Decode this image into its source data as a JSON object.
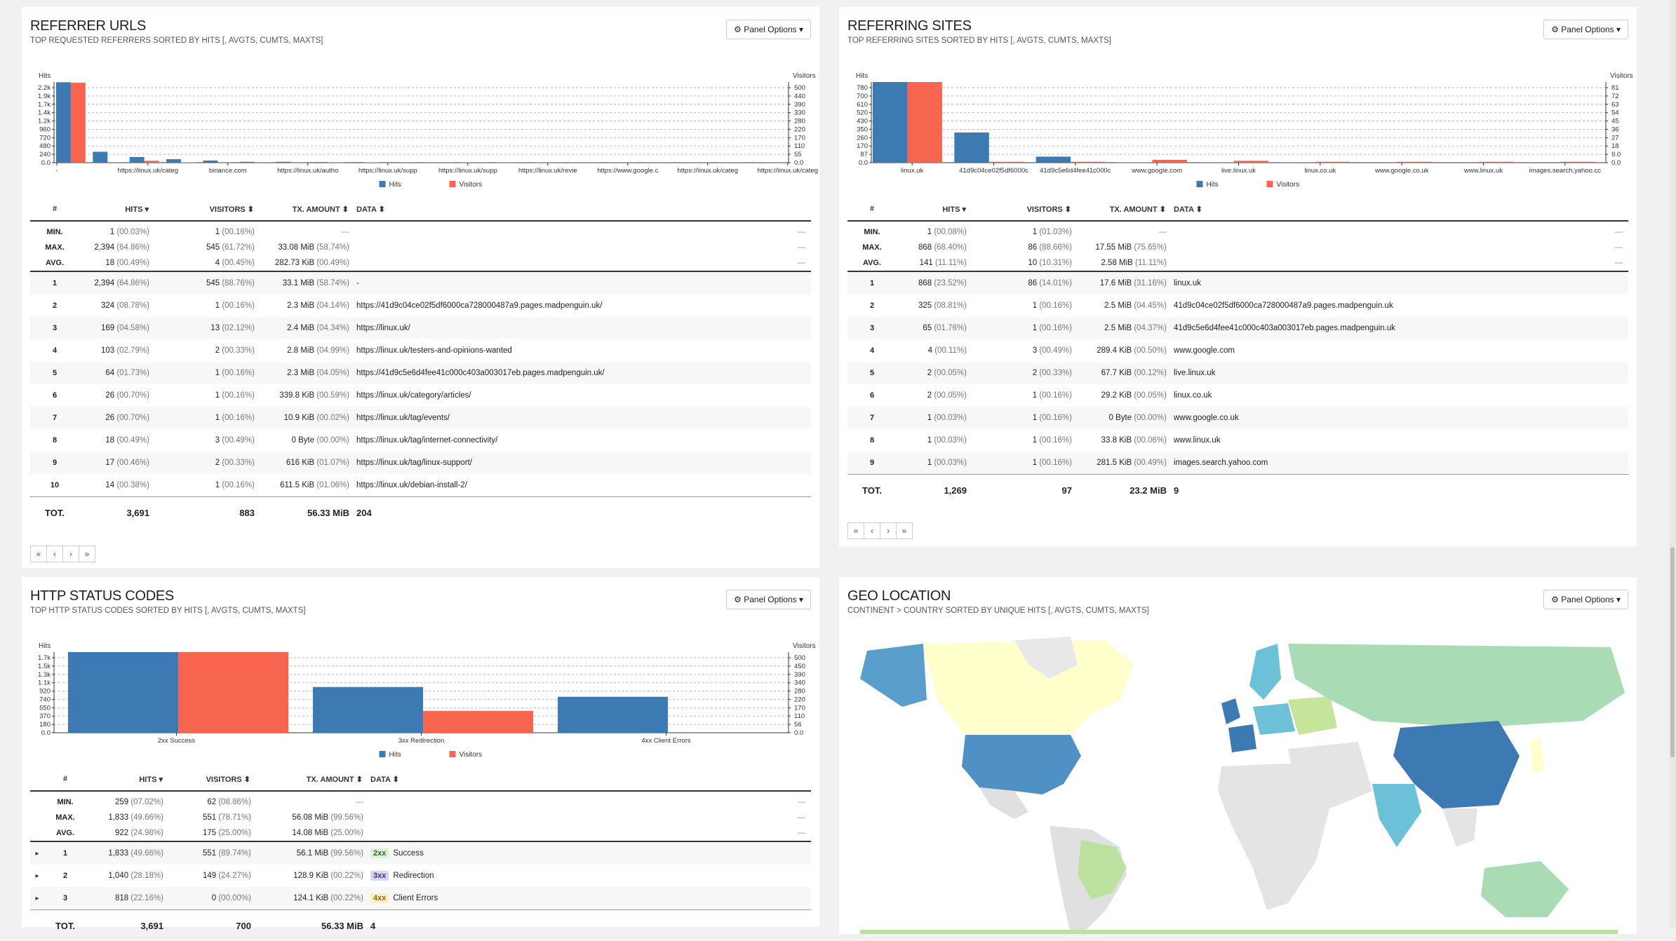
{
  "common": {
    "panel_options": "Panel Options",
    "hits": "Hits",
    "visitors": "Visitors",
    "legend_hits": "Hits",
    "legend_visitors": "Visitors",
    "col_num": "#",
    "col_hits": "HITS",
    "col_visitors": "VISITORS",
    "col_tx": "TX. AMOUNT",
    "col_data": "DATA",
    "min": "MIN.",
    "max": "MAX.",
    "avg": "AVG.",
    "tot": "TOT.",
    "dash": "—",
    "pager": [
      "«",
      "‹",
      "›",
      "»"
    ]
  },
  "colors": {
    "hits": "#3d7ab3",
    "visitors": "#f76450"
  },
  "referrers": {
    "title": "REFERRER URLS",
    "subtitle": "TOP REQUESTED REFERRERS SORTED BY HITS [, AVGTS, CUMTS, MAXTS]",
    "stats": [
      {
        "hits": "1",
        "hits_pct": "(00.03%)",
        "visitors": "1",
        "visitors_pct": "(00.16%)",
        "tx": "—",
        "tx_pct": ""
      },
      {
        "hits": "2,394",
        "hits_pct": "(64.86%)",
        "visitors": "545",
        "visitors_pct": "(61.72%)",
        "tx": "33.08 MiB",
        "tx_pct": "(58.74%)"
      },
      {
        "hits": "18",
        "hits_pct": "(00.49%)",
        "visitors": "4",
        "visitors_pct": "(00.45%)",
        "tx": "282.73 KiB",
        "tx_pct": "(00.49%)"
      }
    ],
    "rows": [
      {
        "n": "1",
        "hits": "2,394",
        "hp": "(64.86%)",
        "vis": "545",
        "vp": "(88.76%)",
        "tx": "33.1 MiB",
        "tp": "(58.74%)",
        "data": "-"
      },
      {
        "n": "2",
        "hits": "324",
        "hp": "(08.78%)",
        "vis": "1",
        "vp": "(00.16%)",
        "tx": "2.3 MiB",
        "tp": "(04.14%)",
        "data": "https://41d9c04ce02f5df6000ca728000487a9.pages.madpenguin.uk/"
      },
      {
        "n": "3",
        "hits": "169",
        "hp": "(04.58%)",
        "vis": "13",
        "vp": "(02.12%)",
        "tx": "2.4 MiB",
        "tp": "(04.34%)",
        "data": "https://linux.uk/"
      },
      {
        "n": "4",
        "hits": "103",
        "hp": "(02.79%)",
        "vis": "2",
        "vp": "(00.33%)",
        "tx": "2.8 MiB",
        "tp": "(04.99%)",
        "data": "https://linux.uk/testers-and-opinions-wanted"
      },
      {
        "n": "5",
        "hits": "64",
        "hp": "(01.73%)",
        "vis": "1",
        "vp": "(00.16%)",
        "tx": "2.3 MiB",
        "tp": "(04.05%)",
        "data": "https://41d9c5e6d4fee41c000c403a003017eb.pages.madpenguin.uk/"
      },
      {
        "n": "6",
        "hits": "26",
        "hp": "(00.70%)",
        "vis": "1",
        "vp": "(00.16%)",
        "tx": "339.8 KiB",
        "tp": "(00.59%)",
        "data": "https://linux.uk/category/articles/"
      },
      {
        "n": "7",
        "hits": "26",
        "hp": "(00.70%)",
        "vis": "1",
        "vp": "(00.16%)",
        "tx": "10.9 KiB",
        "tp": "(00.02%)",
        "data": "https://linux.uk/tag/events/"
      },
      {
        "n": "8",
        "hits": "18",
        "hp": "(00.49%)",
        "vis": "3",
        "vp": "(00.49%)",
        "tx": "0 Byte",
        "tp": "(00.00%)",
        "data": "https://linux.uk/tag/internet-connectivity/"
      },
      {
        "n": "9",
        "hits": "17",
        "hp": "(00.46%)",
        "vis": "2",
        "vp": "(00.33%)",
        "tx": "616 KiB",
        "tp": "(01.07%)",
        "data": "https://linux.uk/tag/linux-support/"
      },
      {
        "n": "10",
        "hits": "14",
        "hp": "(00.38%)",
        "vis": "1",
        "vp": "(00.16%)",
        "tx": "611.5 KiB",
        "tp": "(01.06%)",
        "data": "https://linux.uk/debian-install-2/"
      }
    ],
    "tot": {
      "hits": "3,691",
      "visitors": "883",
      "tx": "56.33 MiB",
      "data": "204"
    }
  },
  "sites": {
    "title": "REFERRING SITES",
    "subtitle": "TOP REFERRING SITES SORTED BY HITS [, AVGTS, CUMTS, MAXTS]",
    "stats": [
      {
        "hits": "1",
        "hits_pct": "(00.08%)",
        "visitors": "1",
        "visitors_pct": "(01.03%)",
        "tx": "—",
        "tx_pct": ""
      },
      {
        "hits": "868",
        "hits_pct": "(68.40%)",
        "visitors": "86",
        "visitors_pct": "(88.66%)",
        "tx": "17.55 MiB",
        "tx_pct": "(75.65%)"
      },
      {
        "hits": "141",
        "hits_pct": "(11.11%)",
        "visitors": "10",
        "visitors_pct": "(10.31%)",
        "tx": "2.58 MiB",
        "tx_pct": "(11.11%)"
      }
    ],
    "rows": [
      {
        "n": "1",
        "hits": "868",
        "hp": "(23.52%)",
        "vis": "86",
        "vp": "(14.01%)",
        "tx": "17.6 MiB",
        "tp": "(31.16%)",
        "data": "linux.uk"
      },
      {
        "n": "2",
        "hits": "325",
        "hp": "(08.81%)",
        "vis": "1",
        "vp": "(00.16%)",
        "tx": "2.5 MiB",
        "tp": "(04.45%)",
        "data": "41d9c04ce02f5df6000ca728000487a9.pages.madpenguin.uk"
      },
      {
        "n": "3",
        "hits": "65",
        "hp": "(01.76%)",
        "vis": "1",
        "vp": "(00.16%)",
        "tx": "2.5 MiB",
        "tp": "(04.37%)",
        "data": "41d9c5e6d4fee41c000c403a003017eb.pages.madpenguin.uk"
      },
      {
        "n": "4",
        "hits": "4",
        "hp": "(00.11%)",
        "vis": "3",
        "vp": "(00.49%)",
        "tx": "289.4 KiB",
        "tp": "(00.50%)",
        "data": "www.google.com"
      },
      {
        "n": "5",
        "hits": "2",
        "hp": "(00.05%)",
        "vis": "2",
        "vp": "(00.33%)",
        "tx": "67.7 KiB",
        "tp": "(00.12%)",
        "data": "live.linux.uk"
      },
      {
        "n": "6",
        "hits": "2",
        "hp": "(00.05%)",
        "vis": "1",
        "vp": "(00.16%)",
        "tx": "29.2 KiB",
        "tp": "(00.05%)",
        "data": "linux.co.uk"
      },
      {
        "n": "7",
        "hits": "1",
        "hp": "(00.03%)",
        "vis": "1",
        "vp": "(00.16%)",
        "tx": "0 Byte",
        "tp": "(00.00%)",
        "data": "www.google.co.uk"
      },
      {
        "n": "8",
        "hits": "1",
        "hp": "(00.03%)",
        "vis": "1",
        "vp": "(00.16%)",
        "tx": "33.8 KiB",
        "tp": "(00.06%)",
        "data": "www.linux.uk"
      },
      {
        "n": "9",
        "hits": "1",
        "hp": "(00.03%)",
        "vis": "1",
        "vp": "(00.16%)",
        "tx": "281.5 KiB",
        "tp": "(00.49%)",
        "data": "images.search.yahoo.com"
      }
    ],
    "tot": {
      "hits": "1,269",
      "visitors": "97",
      "tx": "23.2 MiB",
      "data": "9"
    }
  },
  "status": {
    "title": "HTTP STATUS CODES",
    "subtitle": "TOP HTTP STATUS CODES SORTED BY HITS [, AVGTS, CUMTS, MAXTS]",
    "stats": [
      {
        "hits": "259",
        "hits_pct": "(07.02%)",
        "visitors": "62",
        "visitors_pct": "(08.86%)",
        "tx": "—",
        "tx_pct": ""
      },
      {
        "hits": "1,833",
        "hits_pct": "(49.66%)",
        "visitors": "551",
        "visitors_pct": "(78.71%)",
        "tx": "56.08 MiB",
        "tx_pct": "(99.56%)"
      },
      {
        "hits": "922",
        "hits_pct": "(24.98%)",
        "visitors": "175",
        "visitors_pct": "(25.00%)",
        "tx": "14.08 MiB",
        "tx_pct": "(25.00%)"
      }
    ],
    "rows": [
      {
        "n": "1",
        "hits": "1,833",
        "hp": "(49.66%)",
        "vis": "551",
        "vp": "(89.74%)",
        "tx": "56.1 MiB",
        "tp": "(99.56%)",
        "code": "2xx",
        "data": "Success"
      },
      {
        "n": "2",
        "hits": "1,040",
        "hp": "(28.18%)",
        "vis": "149",
        "vp": "(24.27%)",
        "tx": "128.9 KiB",
        "tp": "(00.22%)",
        "code": "3xx",
        "data": "Redirection"
      },
      {
        "n": "3",
        "hits": "818",
        "hp": "(22.16%)",
        "vis": "0",
        "vp": "(00.00%)",
        "tx": "124.1 KiB",
        "tp": "(00.22%)",
        "code": "4xx",
        "data": "Client Errors"
      }
    ],
    "tot": {
      "hits": "3,691",
      "visitors": "700",
      "tx": "56.33 MiB",
      "data": "4"
    }
  },
  "geo": {
    "title": "GEO LOCATION",
    "subtitle": "CONTINENT > COUNTRY SORTED BY UNIQUE HITS [, AVGTS, CUMTS, MAXTS]"
  },
  "chart_data": [
    {
      "type": "bar",
      "title": "REFERRER URLS",
      "categories": [
        "-",
        "https://linux.uk/categ",
        "binance.com",
        "https://linux.uk/autho",
        "https://linux.uk/supp",
        "https://linux.uk/supp",
        "https://linux.uk/revie",
        "https://www.google.c",
        "https://linux.uk/categ",
        "https://linux.uk/categ"
      ],
      "ylabel": "Hits",
      "y2label": "Visitors",
      "ylim": [
        0,
        2400
      ],
      "y2lim": [
        0,
        550
      ],
      "yticks": [
        "2.2k",
        "1.9k",
        "1.7k",
        "1.4k",
        "1.2k",
        "960",
        "720",
        "480",
        "240",
        "0.0"
      ],
      "y2ticks": [
        "500",
        "440",
        "390",
        "330",
        "280",
        "220",
        "170",
        "110",
        "55",
        "0.0"
      ],
      "bars": [
        {
          "hits": 2394,
          "visitors": 545
        },
        {
          "hits": 324,
          "visitors": 1
        },
        {
          "hits": 169,
          "visitors": 13
        },
        {
          "hits": 103,
          "visitors": 2
        },
        {
          "hits": 64,
          "visitors": 1
        },
        {
          "hits": 26,
          "visitors": 1
        },
        {
          "hits": 26,
          "visitors": 1
        },
        {
          "hits": 18,
          "visitors": 3
        },
        {
          "hits": 17,
          "visitors": 2
        },
        {
          "hits": 14,
          "visitors": 1
        },
        {
          "hits": 12,
          "visitors": 1
        },
        {
          "hits": 10,
          "visitors": 1
        },
        {
          "hits": 9,
          "visitors": 1
        },
        {
          "hits": 8,
          "visitors": 1
        },
        {
          "hits": 7,
          "visitors": 1
        },
        {
          "hits": 6,
          "visitors": 1
        },
        {
          "hits": 5,
          "visitors": 1
        },
        {
          "hits": 5,
          "visitors": 1
        },
        {
          "hits": 4,
          "visitors": 1
        },
        {
          "hits": 4,
          "visitors": 1
        }
      ],
      "legend": [
        "Hits",
        "Visitors"
      ]
    },
    {
      "type": "bar",
      "title": "REFERRING SITES",
      "categories": [
        "linux.uk",
        "41d9c04ce02f5df6000c",
        "41d9c5e6d4fee41c000c",
        "www.google.com",
        "live.linux.uk",
        "linux.co.uk",
        "www.google.co.uk",
        "www.linux.uk",
        "images.search.yahoo.cc"
      ],
      "ylabel": "Hits",
      "y2label": "Visitors",
      "ylim": [
        0,
        868
      ],
      "y2lim": [
        0,
        86
      ],
      "yticks": [
        "780",
        "700",
        "610",
        "520",
        "430",
        "350",
        "260",
        "170",
        "87",
        "0.0"
      ],
      "y2ticks": [
        "81",
        "72",
        "63",
        "54",
        "45",
        "36",
        "27",
        "18",
        "9.0",
        "0.0"
      ],
      "bars": [
        {
          "hits": 868,
          "visitors": 86
        },
        {
          "hits": 325,
          "visitors": 1
        },
        {
          "hits": 65,
          "visitors": 1
        },
        {
          "hits": 4,
          "visitors": 3
        },
        {
          "hits": 2,
          "visitors": 2
        },
        {
          "hits": 2,
          "visitors": 1
        },
        {
          "hits": 1,
          "visitors": 1
        },
        {
          "hits": 1,
          "visitors": 1
        },
        {
          "hits": 1,
          "visitors": 1
        }
      ],
      "legend": [
        "Hits",
        "Visitors"
      ]
    },
    {
      "type": "bar",
      "title": "HTTP STATUS CODES",
      "categories": [
        "2xx Success",
        "3xx Redirection",
        "4xx Client Errors"
      ],
      "ylabel": "Hits",
      "y2label": "Visitors",
      "ylim": [
        0,
        1833
      ],
      "y2lim": [
        0,
        551
      ],
      "yticks": [
        "1.7k",
        "1.5k",
        "1.3k",
        "1.1k",
        "920",
        "740",
        "550",
        "370",
        "180",
        "0.0"
      ],
      "y2ticks": [
        "500",
        "450",
        "390",
        "340",
        "280",
        "220",
        "170",
        "110",
        "56",
        "0.0"
      ],
      "bars": [
        {
          "hits": 1833,
          "visitors": 551
        },
        {
          "hits": 1040,
          "visitors": 149
        },
        {
          "hits": 818,
          "visitors": 0
        }
      ],
      "legend": [
        "Hits",
        "Visitors"
      ]
    }
  ]
}
